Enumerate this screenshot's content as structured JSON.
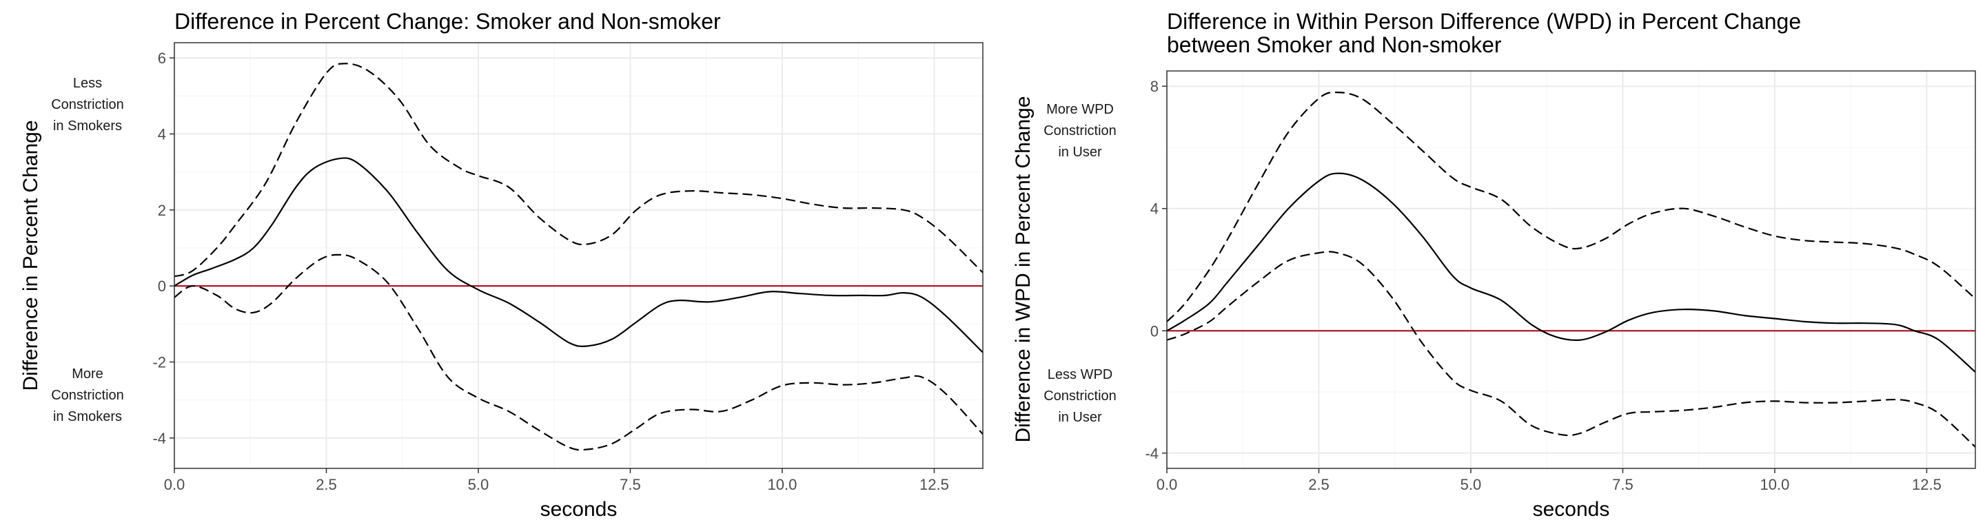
{
  "chart_data": [
    {
      "type": "line",
      "title": "Difference in Percent Change: Smoker and Non-smoker",
      "xlabel": "seconds",
      "ylabel": "Difference in Percent Change",
      "xlim": [
        0,
        13.3
      ],
      "ylim": [
        -4.8,
        6.4
      ],
      "xticks": [
        0,
        2.5,
        5,
        7.5,
        10,
        12.5
      ],
      "xtick_labels": [
        "0.0",
        "2.5",
        "5.0",
        "7.5",
        "10.0",
        "12.5"
      ],
      "yticks": [
        -4,
        -2,
        0,
        2,
        4,
        6
      ],
      "ytick_labels": [
        "-4",
        "-2",
        "0",
        "2",
        "4",
        "6"
      ],
      "grid": true,
      "reference_line": {
        "y": 0,
        "color": "#b2182b"
      },
      "annotations": {
        "upper": [
          "Less",
          "Constriction",
          "in Smokers"
        ],
        "lower": [
          "More",
          "Constriction",
          "in Smokers"
        ]
      },
      "series": [
        {
          "style": "solid",
          "color": "#000000",
          "x": [
            0,
            0.3,
            0.6,
            1.0,
            1.3,
            1.6,
            2.0,
            2.3,
            2.7,
            3.0,
            3.5,
            4.0,
            4.5,
            5.0,
            5.5,
            6.0,
            6.5,
            6.8,
            7.2,
            7.6,
            8.0,
            8.3,
            8.8,
            9.3,
            9.8,
            10.3,
            10.8,
            11.3,
            11.7,
            12.0,
            12.3,
            12.7,
            13.3
          ],
          "y": [
            0,
            0.28,
            0.45,
            0.7,
            1.0,
            1.6,
            2.6,
            3.1,
            3.35,
            3.25,
            2.5,
            1.4,
            0.4,
            -0.1,
            -0.45,
            -0.95,
            -1.5,
            -1.58,
            -1.4,
            -0.95,
            -0.5,
            -0.38,
            -0.42,
            -0.3,
            -0.15,
            -0.2,
            -0.25,
            -0.25,
            -0.25,
            -0.18,
            -0.3,
            -0.8,
            -1.75
          ]
        },
        {
          "style": "dashed",
          "color": "#000000",
          "x": [
            0,
            0.3,
            0.7,
            1.0,
            1.5,
            2.0,
            2.5,
            2.8,
            3.2,
            3.7,
            4.2,
            4.7,
            5.0,
            5.5,
            6.0,
            6.5,
            6.8,
            7.2,
            7.6,
            8.0,
            8.5,
            9.0,
            9.5,
            10.0,
            10.5,
            11.0,
            11.5,
            12.0,
            12.3,
            12.7,
            13.3
          ],
          "y": [
            0.25,
            0.4,
            1.0,
            1.6,
            2.7,
            4.3,
            5.6,
            5.85,
            5.65,
            4.9,
            3.7,
            3.1,
            2.9,
            2.6,
            1.8,
            1.2,
            1.1,
            1.35,
            2.0,
            2.4,
            2.5,
            2.45,
            2.4,
            2.3,
            2.15,
            2.05,
            2.05,
            2.0,
            1.8,
            1.3,
            0.35
          ]
        },
        {
          "style": "dashed",
          "color": "#000000",
          "x": [
            0,
            0.3,
            0.7,
            1.0,
            1.3,
            1.6,
            2.0,
            2.4,
            2.7,
            3.0,
            3.5,
            4.0,
            4.5,
            5.0,
            5.5,
            6.0,
            6.5,
            6.8,
            7.2,
            7.6,
            8.0,
            8.5,
            9.0,
            9.5,
            10.0,
            10.5,
            11.0,
            11.5,
            12.0,
            12.3,
            12.7,
            13.3
          ],
          "y": [
            -0.3,
            0.0,
            -0.25,
            -0.6,
            -0.7,
            -0.45,
            0.2,
            0.7,
            0.82,
            0.7,
            0.1,
            -1.1,
            -2.4,
            -2.95,
            -3.3,
            -3.8,
            -4.25,
            -4.3,
            -4.15,
            -3.75,
            -3.35,
            -3.25,
            -3.3,
            -3.0,
            -2.62,
            -2.55,
            -2.6,
            -2.55,
            -2.42,
            -2.4,
            -2.85,
            -3.9
          ]
        }
      ]
    },
    {
      "type": "line",
      "title": [
        "Difference in Within Person Difference (WPD) in Percent Change",
        "between Smoker and Non-smoker"
      ],
      "xlabel": "seconds",
      "ylabel": "Difference in WPD in Percent Change",
      "xlim": [
        0,
        13.3
      ],
      "ylim": [
        -4.5,
        8.5
      ],
      "xticks": [
        0,
        2.5,
        5,
        7.5,
        10,
        12.5
      ],
      "xtick_labels": [
        "0.0",
        "2.5",
        "5.0",
        "7.5",
        "10.0",
        "12.5"
      ],
      "yticks": [
        -4,
        0,
        4,
        8
      ],
      "ytick_labels": [
        "-4",
        "0",
        "4",
        "8"
      ],
      "grid": true,
      "reference_line": {
        "y": 0,
        "color": "#b2182b"
      },
      "annotations": {
        "upper": [
          "More WPD",
          "Constriction",
          "in User"
        ],
        "lower": [
          "Less WPD",
          "Constriction",
          "in User"
        ]
      },
      "series": [
        {
          "style": "solid",
          "color": "#000000",
          "x": [
            0,
            0.3,
            0.7,
            1.0,
            1.5,
            2.0,
            2.5,
            2.8,
            3.2,
            3.7,
            4.2,
            4.7,
            5.0,
            5.5,
            6.0,
            6.4,
            6.8,
            7.2,
            7.6,
            8.0,
            8.5,
            9.0,
            9.5,
            10.0,
            10.5,
            11.0,
            11.5,
            12.0,
            12.3,
            12.7,
            13.3
          ],
          "y": [
            0,
            0.35,
            0.9,
            1.6,
            2.8,
            4.0,
            4.9,
            5.15,
            4.95,
            4.2,
            3.1,
            1.8,
            1.4,
            1.0,
            0.2,
            -0.2,
            -0.3,
            -0.05,
            0.35,
            0.6,
            0.7,
            0.65,
            0.5,
            0.4,
            0.3,
            0.25,
            0.25,
            0.2,
            0.0,
            -0.3,
            -1.35
          ]
        },
        {
          "style": "dashed",
          "color": "#000000",
          "x": [
            0,
            0.3,
            0.7,
            1.0,
            1.5,
            2.0,
            2.5,
            2.8,
            3.2,
            3.7,
            4.2,
            4.7,
            5.0,
            5.5,
            6.0,
            6.5,
            6.8,
            7.2,
            7.6,
            8.0,
            8.5,
            9.0,
            9.5,
            10.0,
            10.5,
            11.0,
            11.5,
            12.0,
            12.3,
            12.7,
            13.3
          ],
          "y": [
            0.3,
            0.9,
            2.0,
            3.0,
            4.8,
            6.5,
            7.6,
            7.8,
            7.6,
            6.8,
            5.9,
            5.0,
            4.7,
            4.3,
            3.4,
            2.8,
            2.7,
            3.0,
            3.5,
            3.85,
            4.0,
            3.75,
            3.4,
            3.1,
            2.95,
            2.9,
            2.85,
            2.7,
            2.5,
            2.1,
            1.05
          ]
        },
        {
          "style": "dashed",
          "color": "#000000",
          "x": [
            0,
            0.3,
            0.7,
            1.0,
            1.5,
            2.0,
            2.5,
            2.8,
            3.2,
            3.7,
            4.2,
            4.7,
            5.0,
            5.5,
            6.0,
            6.5,
            6.8,
            7.2,
            7.6,
            8.0,
            8.5,
            9.0,
            9.5,
            10.0,
            10.5,
            11.0,
            11.5,
            12.0,
            12.3,
            12.7,
            13.3
          ],
          "y": [
            -0.3,
            -0.1,
            0.3,
            0.8,
            1.6,
            2.3,
            2.55,
            2.55,
            2.2,
            1.1,
            -0.4,
            -1.6,
            -1.95,
            -2.3,
            -3.1,
            -3.4,
            -3.35,
            -3.0,
            -2.7,
            -2.65,
            -2.6,
            -2.5,
            -2.35,
            -2.3,
            -2.35,
            -2.35,
            -2.3,
            -2.25,
            -2.35,
            -2.7,
            -3.8
          ]
        }
      ]
    }
  ]
}
